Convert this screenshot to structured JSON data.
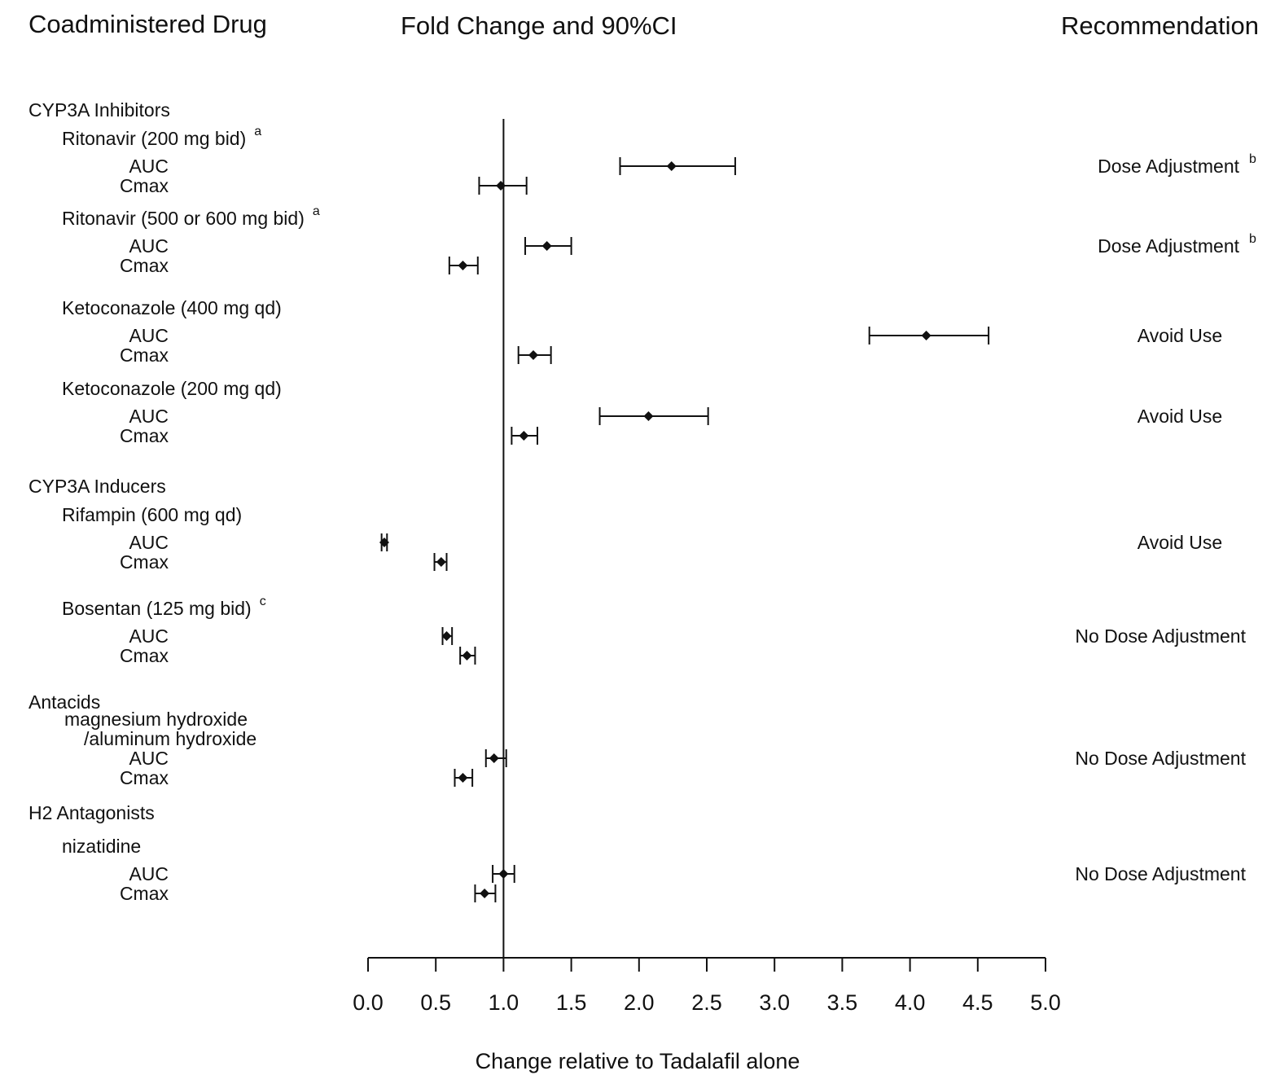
{
  "headers": {
    "left": "Coadministered Drug",
    "center": "Fold Change and 90%CI",
    "right": "Recommendation"
  },
  "chart_data": {
    "type": "forest",
    "title": "Fold Change and 90%CI",
    "xlabel": "Change relative to Tadalafil alone",
    "xlim": [
      0,
      5
    ],
    "xticks": [
      "0.0",
      "0.5",
      "1.0",
      "1.5",
      "2.0",
      "2.5",
      "3.0",
      "3.5",
      "4.0",
      "4.5",
      "5.0"
    ],
    "reference_line": 1.0,
    "groups": [
      {
        "label": "CYP3A Inhibitors",
        "drugs": [
          {
            "label": "Ritonavir (200 mg bid)",
            "sup": "a",
            "recommendation": "Dose Adjustment",
            "rec_sup": "b",
            "measures": [
              {
                "name": "AUC",
                "estimate": 2.24,
                "lower": 1.86,
                "upper": 2.71
              },
              {
                "name": "Cmax",
                "estimate": 0.98,
                "lower": 0.82,
                "upper": 1.17
              }
            ]
          },
          {
            "label": "Ritonavir (500 or 600  mg bid)",
            "sup": "a",
            "recommendation": "Dose Adjustment",
            "rec_sup": "b",
            "measures": [
              {
                "name": "AUC",
                "estimate": 1.32,
                "lower": 1.16,
                "upper": 1.5
              },
              {
                "name": "Cmax",
                "estimate": 0.7,
                "lower": 0.6,
                "upper": 0.81
              }
            ]
          },
          {
            "label": "Ketoconazole (400 mg qd)",
            "sup": "",
            "recommendation": "Avoid Use",
            "rec_sup": "",
            "measures": [
              {
                "name": "AUC",
                "estimate": 4.12,
                "lower": 3.7,
                "upper": 4.58
              },
              {
                "name": "Cmax",
                "estimate": 1.22,
                "lower": 1.11,
                "upper": 1.35
              }
            ]
          },
          {
            "label": "Ketoconazole (200 mg qd)",
            "sup": "",
            "recommendation": "Avoid Use",
            "rec_sup": "",
            "measures": [
              {
                "name": "AUC",
                "estimate": 2.07,
                "lower": 1.71,
                "upper": 2.51
              },
              {
                "name": "Cmax",
                "estimate": 1.15,
                "lower": 1.06,
                "upper": 1.25
              }
            ]
          }
        ]
      },
      {
        "label": "CYP3A Inducers",
        "drugs": [
          {
            "label": "Rifampin (600 mg qd)",
            "sup": "",
            "recommendation": "Avoid Use",
            "rec_sup": "",
            "measures": [
              {
                "name": "AUC",
                "estimate": 0.12,
                "lower": 0.1,
                "upper": 0.14
              },
              {
                "name": "Cmax",
                "estimate": 0.54,
                "lower": 0.49,
                "upper": 0.58
              }
            ]
          },
          {
            "label": "Bosentan (125 mg bid)",
            "sup": "c",
            "recommendation": "No Dose Adjustment",
            "rec_sup": "",
            "measures": [
              {
                "name": "AUC",
                "estimate": 0.58,
                "lower": 0.55,
                "upper": 0.62
              },
              {
                "name": "Cmax",
                "estimate": 0.73,
                "lower": 0.68,
                "upper": 0.79
              }
            ]
          }
        ]
      },
      {
        "label": "Antacids",
        "drugs": [
          {
            "label": "magnesium hydroxide",
            "label2": "/aluminum hydroxide",
            "sup": "",
            "recommendation": "No Dose Adjustment",
            "rec_sup": "",
            "measures": [
              {
                "name": "AUC",
                "estimate": 0.93,
                "lower": 0.87,
                "upper": 1.02
              },
              {
                "name": "Cmax",
                "estimate": 0.7,
                "lower": 0.64,
                "upper": 0.77
              }
            ]
          }
        ]
      },
      {
        "label": "H2 Antagonists",
        "drugs": [
          {
            "label": "nizatidine",
            "sup": "",
            "recommendation": "No Dose Adjustment",
            "rec_sup": "",
            "measures": [
              {
                "name": "AUC",
                "estimate": 1.0,
                "lower": 0.92,
                "upper": 1.08
              },
              {
                "name": "Cmax",
                "estimate": 0.86,
                "lower": 0.79,
                "upper": 0.94
              }
            ]
          }
        ]
      }
    ]
  }
}
